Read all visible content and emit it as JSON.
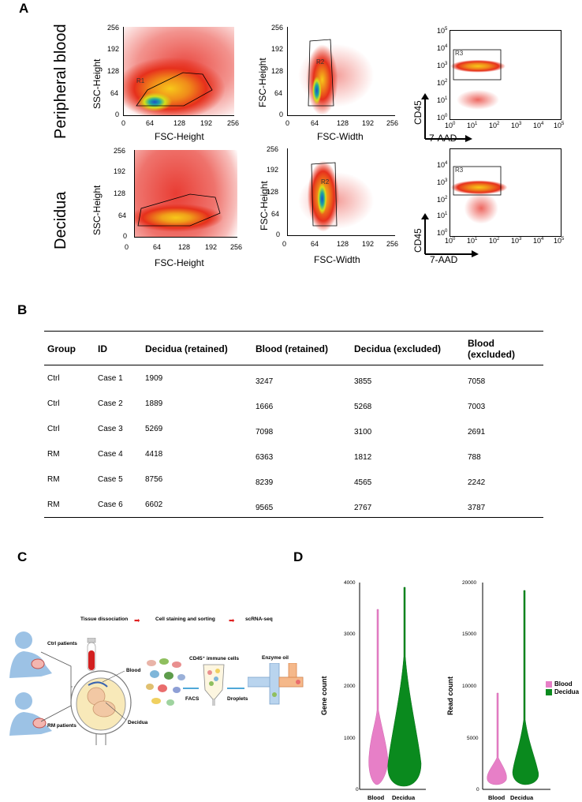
{
  "panels": {
    "a": "A",
    "b": "B",
    "c": "C",
    "d": "D"
  },
  "panel_a": {
    "rows": [
      "Peripheral blood",
      "Decidua"
    ],
    "fsc_ticks": [
      "0",
      "64",
      "128",
      "192",
      "256"
    ],
    "fsc_ticks_first_row": [
      "0",
      "64",
      "128",
      "192",
      "256"
    ],
    "ssc_ticks": [
      "256",
      "192",
      "128",
      "64",
      "0"
    ],
    "fsc_height_ticks": [
      "256",
      "192",
      "128",
      "64",
      "0"
    ],
    "x_fsc_height": "FSC-Height",
    "x_fsc_width": "FSC-Width",
    "y_ssc_height": "SSC-Height",
    "y_fsc_height": "FSC-Height",
    "gate_r1": "R1",
    "gate_r2": "R2",
    "gate_r3": "R3",
    "cd45": "CD45",
    "aad": "7-AAD",
    "log_x": [
      "10",
      "10",
      "10",
      "10",
      "10",
      "10"
    ],
    "log_x_exp": [
      "0",
      "1",
      "2",
      "3",
      "4",
      "5"
    ],
    "log_y_exp": [
      "5",
      "4",
      "3",
      "2",
      "1",
      "0"
    ]
  },
  "table": {
    "headers": [
      "Group",
      "ID",
      "Decidua (retained)",
      "Blood (retained)",
      "Decidua (excluded)",
      "Blood (excluded)"
    ],
    "rows": [
      [
        "Ctrl",
        "Case 1",
        "1909",
        "3247",
        "3855",
        "7058"
      ],
      [
        "Ctrl",
        "Case 2",
        "1889",
        "1666",
        "5268",
        "7003"
      ],
      [
        "Ctrl",
        "Case 3",
        "5269",
        "7098",
        "3100",
        "2691"
      ],
      [
        "RM",
        "Case 4",
        "4418",
        "6363",
        "1812",
        "788"
      ],
      [
        "RM",
        "Case 5",
        "8756",
        "8239",
        "4565",
        "2242"
      ],
      [
        "RM",
        "Case 6",
        "6602",
        "9565",
        "2767",
        "3787"
      ]
    ]
  },
  "schematic": {
    "step1": "Tissue dissociation",
    "step2": "Cell staining and sorting",
    "step3": "scRNA-seq",
    "ctrl": "Ctrl patients",
    "rm": "RM patients",
    "blood": "Blood",
    "decidua": "Decidua",
    "cd45": "CD45⁺ immune cells",
    "enzyme": "Enzyme oil",
    "facs": "FACS",
    "droplets": "Droplets"
  },
  "violin": {
    "left_title": "Gene count",
    "right_title": "Read count",
    "left_ticks": [
      "4000",
      "3000",
      "2000",
      "1000",
      "0"
    ],
    "right_ticks": [
      "20000",
      "15000",
      "10000",
      "5000",
      "0"
    ],
    "categories": [
      "Blood",
      "Decidua"
    ],
    "legend": [
      "Blood",
      "Decidua"
    ],
    "colors": {
      "blood": "#e77fc7",
      "decidua": "#0a8a1e"
    }
  },
  "chart_data": [
    {
      "type": "violin",
      "title": "",
      "ylabel": "Gene count",
      "categories": [
        "Blood",
        "Decidua"
      ],
      "ylim": [
        0,
        4000
      ],
      "series": [
        {
          "name": "Blood",
          "median": 450,
          "max": 3500,
          "min": 150
        },
        {
          "name": "Decidua",
          "median": 650,
          "max": 3800,
          "min": 150
        }
      ]
    },
    {
      "type": "violin",
      "title": "",
      "ylabel": "Read count",
      "categories": [
        "Blood",
        "Decidua"
      ],
      "ylim": [
        0,
        20000
      ],
      "series": [
        {
          "name": "Blood",
          "median": 1400,
          "max": 9300,
          "min": 500
        },
        {
          "name": "Decidua",
          "median": 2100,
          "max": 19000,
          "min": 700
        }
      ]
    }
  ]
}
